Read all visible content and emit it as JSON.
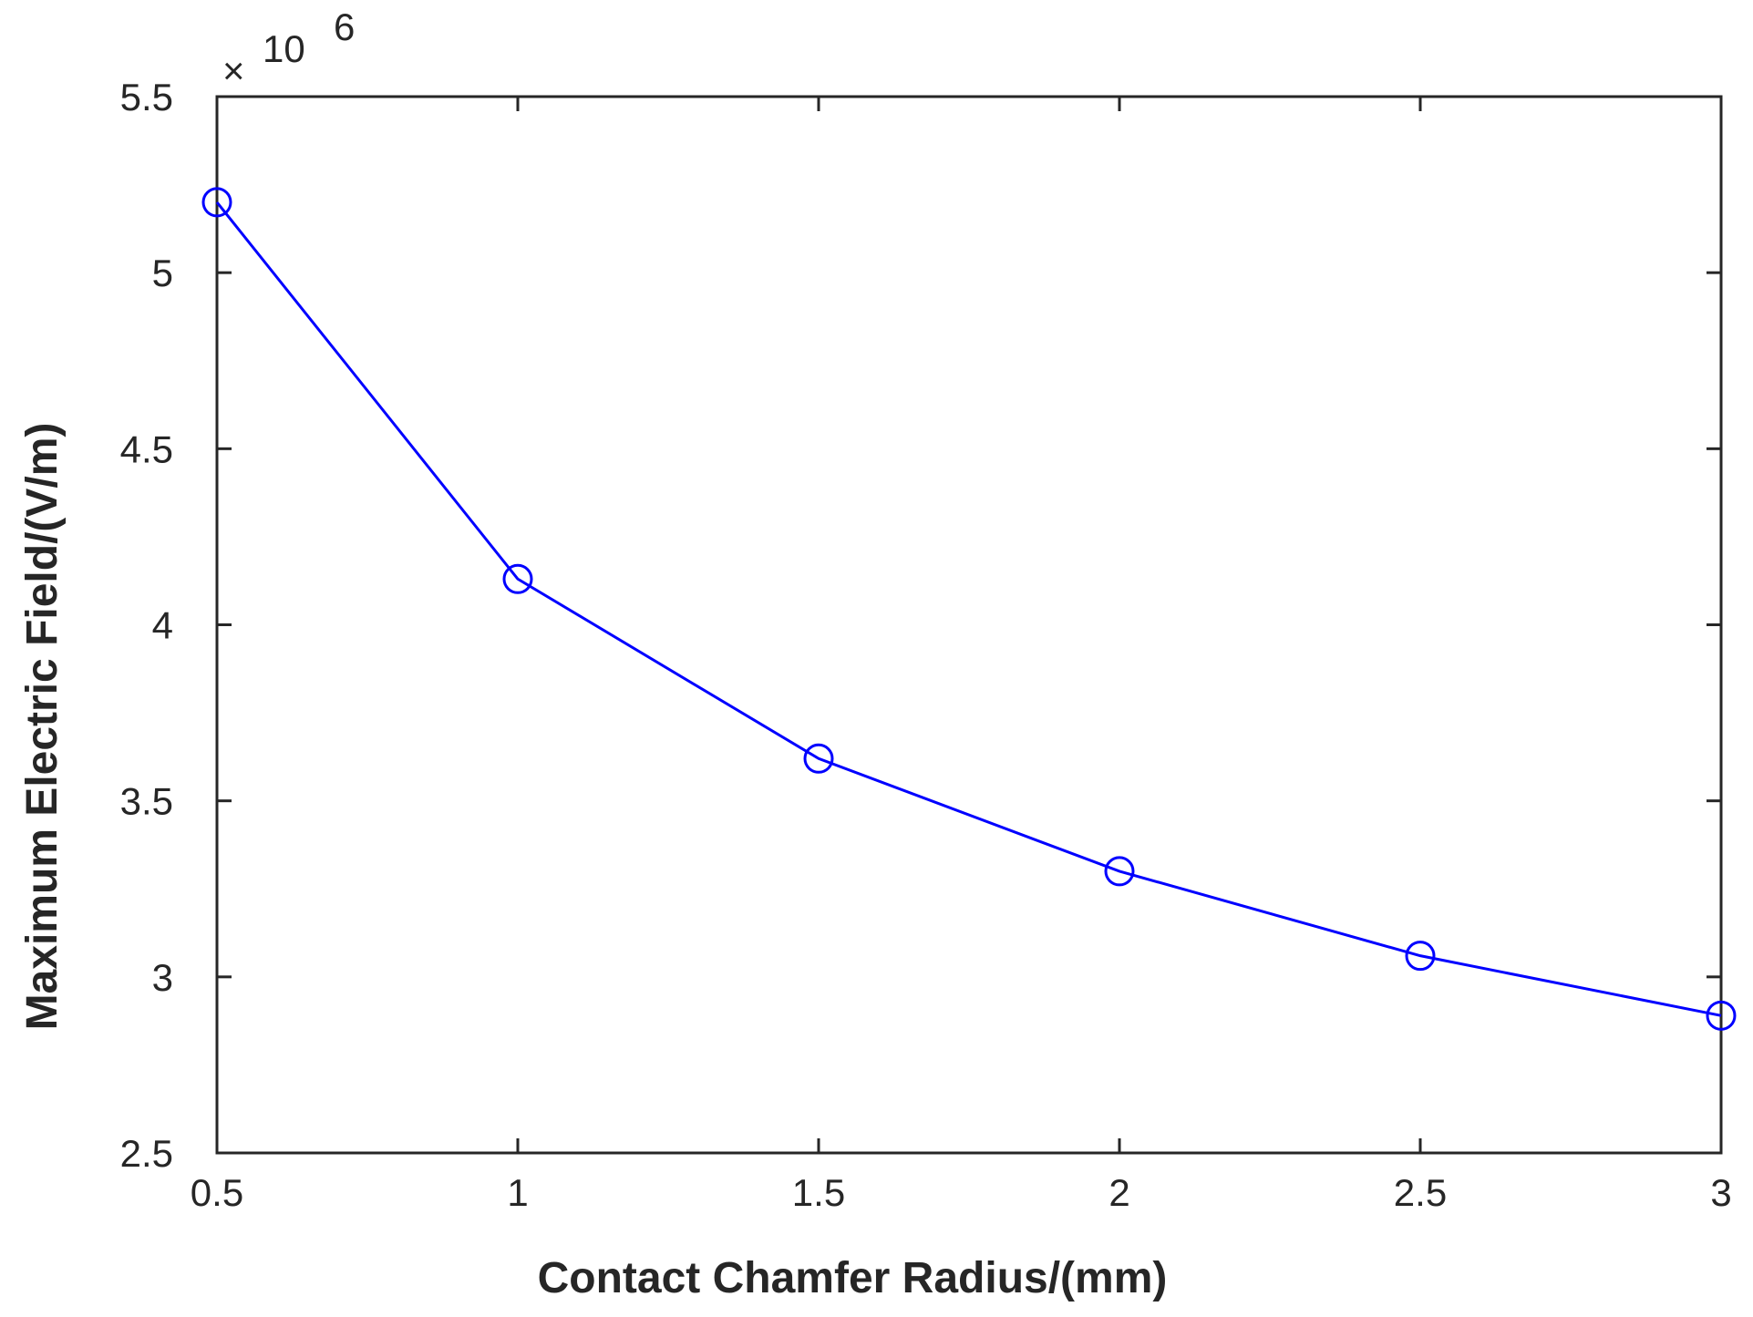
{
  "chart_data": {
    "type": "line",
    "xlabel": "Contact Chamfer Radius/(mm)",
    "ylabel": "Maximum Electric Field/(V/m)",
    "exponent_label": "10",
    "exponent_power": "6",
    "exponent_times": "×",
    "xlim": [
      0.5,
      3
    ],
    "ylim": [
      2.5,
      5.5
    ],
    "xticks": [
      "0.5",
      "1",
      "1.5",
      "2",
      "2.5",
      "3"
    ],
    "yticks": [
      "2.5",
      "3",
      "3.5",
      "4",
      "4.5",
      "5",
      "5.5"
    ],
    "grid": false,
    "series": [
      {
        "color": "#0000ff",
        "marker": "circle",
        "x": [
          0.5,
          1,
          1.5,
          2,
          2.5,
          3
        ],
        "y": [
          5.2,
          4.13,
          3.62,
          3.3,
          3.06,
          2.89
        ]
      }
    ]
  }
}
